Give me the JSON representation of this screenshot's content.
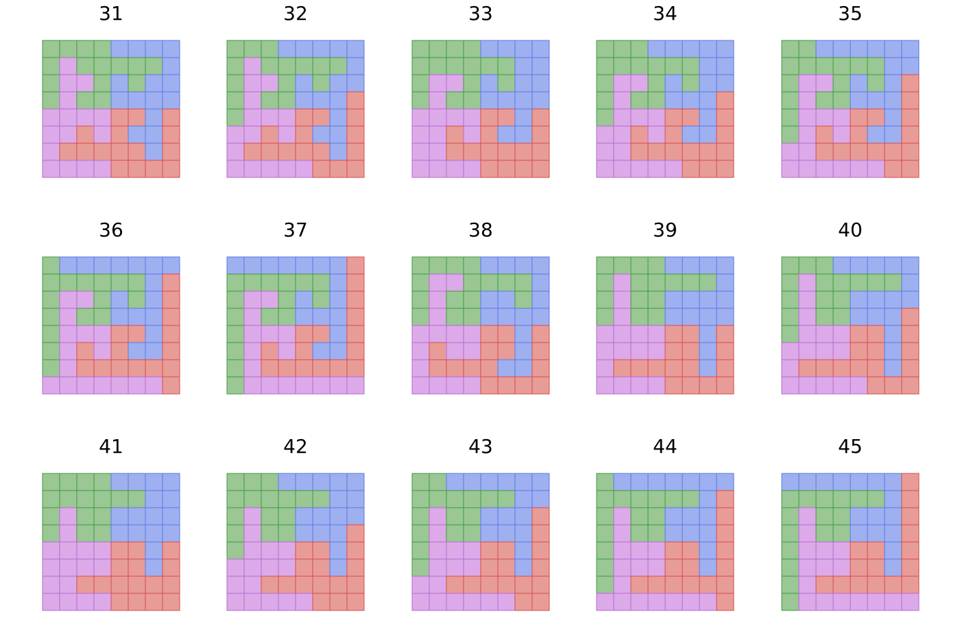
{
  "palette": {
    "G": {
      "fill": "#9ac793",
      "stroke": "#3f9a3f"
    },
    "B": {
      "fill": "#9eb0f0",
      "stroke": "#5a78e0"
    },
    "P": {
      "fill": "#dcaae8",
      "stroke": "#b46ad0"
    },
    "R": {
      "fill": "#e89c98",
      "stroke": "#d24d4d"
    }
  },
  "panels": [
    {
      "title": "31",
      "rows": [
        "GGGGBBBB",
        "GPGGGGGB",
        "GPPGBGBB",
        "GPGGBBBB",
        "PPPPRRBR",
        "PPRPRBBR",
        "PRRRRRBR",
        "PPPPRRRR"
      ]
    },
    {
      "title": "32",
      "rows": [
        "GGGBBBBB",
        "GPGGGGGB",
        "GPPGBGBB",
        "GPGGBBBR",
        "GPPPRRBR",
        "PPRPRBBR",
        "PRRRRRBR",
        "PPPPPRRR"
      ]
    },
    {
      "title": "33",
      "rows": [
        "GGGGBBBB",
        "GGGGGGBB",
        "GPPGBGBB",
        "GPGGBBBB",
        "PPPPRRBR",
        "PPRPRBBR",
        "PPRRRRRR",
        "PPPPRRRR"
      ]
    },
    {
      "title": "34",
      "rows": [
        "GGGBBBBB",
        "GGGGGGBB",
        "GPPGBGBB",
        "GPGGBBBR",
        "GPPPRRBR",
        "PPRPRBBR",
        "PPRRRRRR",
        "PPPPPRRR"
      ]
    },
    {
      "title": "35",
      "rows": [
        "GGBBBBBB",
        "GGGGGGBB",
        "GPPGBGBR",
        "GPGGBBBR",
        "GPPPRRBR",
        "GPRPRBBR",
        "PPRRRRRR",
        "PPPPPPRR"
      ]
    },
    {
      "title": "36",
      "rows": [
        "GBBBBBBB",
        "GGGGGGBR",
        "GPPGBGBR",
        "GPGGBBBR",
        "GPPPRRBR",
        "GPRPRBBR",
        "GPRRRRRR",
        "PPPPPPPR"
      ]
    },
    {
      "title": "37",
      "rows": [
        "BBBBBBBR",
        "GGGGGGBR",
        "GPPGBGBR",
        "GPGGBBBR",
        "GPPPRRBR",
        "GPRPRBBR",
        "GPRRRRRR",
        "GPPPPPPP"
      ]
    },
    {
      "title": "38",
      "rows": [
        "GGGGBBBB",
        "GPPGGGGB",
        "GPGGBBGB",
        "GPGGBBBB",
        "PPPPRRBR",
        "PRPPRRBR",
        "PRRRRBBR",
        "PPPPRRRR"
      ]
    },
    {
      "title": "39",
      "rows": [
        "GGGGBBBB",
        "GPGGGGGB",
        "GPGGBBBB",
        "GPGGBBBB",
        "PPPPRRBR",
        "PPPPRRBR",
        "PRRRRRBR",
        "PPPPRRRR"
      ]
    },
    {
      "title": "40",
      "rows": [
        "GGGBBBBB",
        "GPGGGGGB",
        "GPGGBBBB",
        "GPGGBBBR",
        "GPPPRRBR",
        "PPPPRRBR",
        "PRRRRRBR",
        "PPPPPRRR"
      ]
    },
    {
      "title": "41",
      "rows": [
        "GGGGBBBB",
        "GGGGGGBB",
        "GPGGBBBB",
        "GPGGBBBB",
        "PPPPRRBR",
        "PPPPRRBR",
        "PPRRRRRR",
        "PPPPRRRR"
      ]
    },
    {
      "title": "42",
      "rows": [
        "GGGBBBBB",
        "GGGGGGBB",
        "GPGGBBBB",
        "GPGGBBBR",
        "GPPPRRBR",
        "PPPPRRBR",
        "PPRRRRRR",
        "PPPPPRRR"
      ]
    },
    {
      "title": "43",
      "rows": [
        "GGBBBBBB",
        "GGGGGGBB",
        "GPGGBBBR",
        "GPGGBBBR",
        "GPPPRRBR",
        "GPPPRRBR",
        "PPRRRRRR",
        "PPPPPPRR"
      ]
    },
    {
      "title": "44",
      "rows": [
        "GBBBBBBB",
        "GGGGGGBR",
        "GPGGBBBR",
        "GPGGBBBR",
        "GPPPRRBR",
        "GPPPRRBR",
        "GPRRRRRR",
        "PPPPPPPR"
      ]
    },
    {
      "title": "45",
      "rows": [
        "BBBBBBBR",
        "GGGGGGBR",
        "GPGGBBBR",
        "GPGGBBBR",
        "GPPPRRBR",
        "GPPPRRBR",
        "GPRRRRRR",
        "GPPPPPPP"
      ]
    }
  ]
}
